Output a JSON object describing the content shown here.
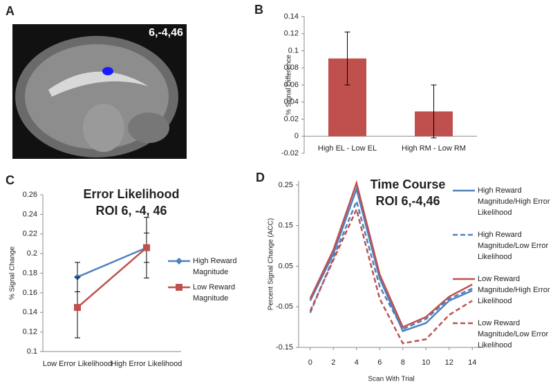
{
  "chart_data": [
    {
      "type": "image",
      "panel": "A",
      "annotation": "6,-4,46"
    },
    {
      "type": "bar",
      "panel": "B",
      "ylabel": "% Signal Difference",
      "categories": [
        "High EL - Low EL",
        "High RM - Low RM"
      ],
      "values": [
        0.091,
        0.029
      ],
      "errors": [
        0.031,
        0.031
      ],
      "color": "#c0504d",
      "ylim": [
        -0.02,
        0.14
      ],
      "yticks": [
        -0.02,
        0,
        0.02,
        0.04,
        0.06,
        0.08,
        0.1,
        0.12,
        0.14
      ]
    },
    {
      "type": "line",
      "panel": "C",
      "title": "Error Likelihood",
      "subtitle": "ROI 6, -4, 46",
      "ylabel": "% Signal Change",
      "categories": [
        "Low Error Likelihood",
        "High Error Likelihood"
      ],
      "series": [
        {
          "name": "High Reward Magnitude",
          "color": "#4f81bd",
          "marker": "diamond",
          "values": [
            0.176,
            0.206
          ],
          "errors": [
            0.015,
            0.015
          ]
        },
        {
          "name": "Low Reward Magnitude",
          "color": "#c0504d",
          "marker": "square",
          "values": [
            0.145,
            0.206
          ],
          "errors": [
            0.031,
            0.031
          ]
        }
      ],
      "ylim": [
        0.1,
        0.26
      ],
      "yticks": [
        0.1,
        0.12,
        0.14,
        0.16,
        0.18,
        0.2,
        0.22,
        0.24,
        0.26
      ]
    },
    {
      "type": "line",
      "panel": "D",
      "title": "Time Course",
      "subtitle": "ROI 6,-4,46",
      "xlabel": "Scan With Trial",
      "ylabel": "Percent Signal Change (ACC)",
      "x": [
        0,
        2,
        4,
        6,
        8,
        10,
        12,
        14
      ],
      "series": [
        {
          "name": "High Reward Magnitude/High Error Likelihood",
          "color": "#4f81bd",
          "dash": false,
          "values": [
            -0.035,
            0.08,
            0.24,
            0.02,
            -0.11,
            -0.09,
            -0.035,
            -0.01
          ]
        },
        {
          "name": "High Reward Magnitude/Low Error Likelihood",
          "color": "#4f81bd",
          "dash": true,
          "values": [
            -0.065,
            0.07,
            0.21,
            0.0,
            -0.105,
            -0.08,
            -0.03,
            -0.005
          ]
        },
        {
          "name": "Low Reward Magnitude/High Error Likelihood",
          "color": "#c0504d",
          "dash": false,
          "values": [
            -0.03,
            0.09,
            0.255,
            0.03,
            -0.1,
            -0.075,
            -0.025,
            0.005
          ]
        },
        {
          "name": "Low Reward Magnitude/Low Error Likelihood",
          "color": "#c0504d",
          "dash": true,
          "values": [
            -0.06,
            0.065,
            0.19,
            -0.03,
            -0.14,
            -0.13,
            -0.07,
            -0.035
          ]
        }
      ],
      "xlim": [
        -1,
        15
      ],
      "xticks": [
        0,
        2,
        4,
        6,
        8,
        10,
        12,
        14
      ],
      "ylim": [
        -0.15,
        0.26
      ],
      "yticks": [
        -0.15,
        -0.05,
        0.05,
        0.15,
        0.25
      ]
    }
  ]
}
